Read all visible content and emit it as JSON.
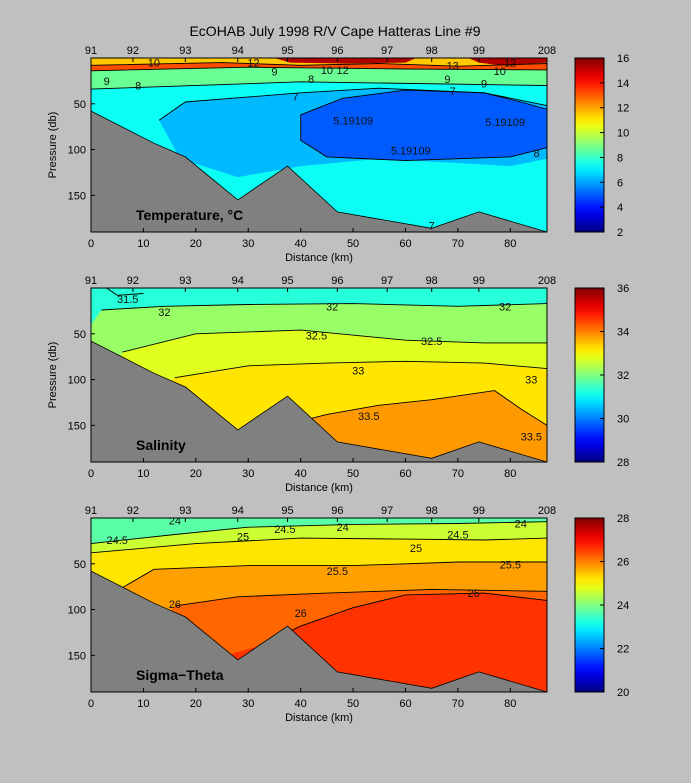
{
  "figure": {
    "title": "EcOHAB   July 1998   R/V Cape Hatteras   Line #9"
  },
  "chart_data": [
    {
      "type": "contour",
      "panel_name": "Temperature, °C",
      "xlabel": "Distance (km)",
      "ylabel": "Pressure (db)",
      "xlim": [
        0,
        87
      ],
      "ylim": [
        190,
        0
      ],
      "x_ticks": [
        0,
        10,
        20,
        30,
        40,
        50,
        60,
        70,
        80
      ],
      "y_ticks": [
        50,
        100,
        150
      ],
      "station_labels": [
        {
          "label": "91",
          "x": 0
        },
        {
          "label": "92",
          "x": 8
        },
        {
          "label": "93",
          "x": 18
        },
        {
          "label": "94",
          "x": 28
        },
        {
          "label": "95",
          "x": 37.5
        },
        {
          "label": "96",
          "x": 47
        },
        {
          "label": "97",
          "x": 56.5
        },
        {
          "label": "98",
          "x": 65
        },
        {
          "label": "99",
          "x": 74
        },
        {
          "label": "208",
          "x": 87
        }
      ],
      "colorbar": {
        "min": 2,
        "max": 16,
        "ticks": [
          "2",
          "4",
          "6",
          "8",
          "10",
          "12",
          "14",
          "16"
        ]
      },
      "contour_labels": [
        {
          "text": "10",
          "x": 12,
          "y": 5
        },
        {
          "text": "12",
          "x": 31,
          "y": 5
        },
        {
          "text": "9",
          "x": 35,
          "y": 15
        },
        {
          "text": "10",
          "x": 45,
          "y": 13
        },
        {
          "text": "12",
          "x": 48,
          "y": 13
        },
        {
          "text": "8",
          "x": 42,
          "y": 23
        },
        {
          "text": "13",
          "x": 69,
          "y": 8
        },
        {
          "text": "12",
          "x": 80,
          "y": 5
        },
        {
          "text": "10",
          "x": 78,
          "y": 14
        },
        {
          "text": "9",
          "x": 3,
          "y": 25
        },
        {
          "text": "8",
          "x": 9,
          "y": 30
        },
        {
          "text": "9",
          "x": 68,
          "y": 23
        },
        {
          "text": "9",
          "x": 75,
          "y": 28
        },
        {
          "text": "7",
          "x": 69,
          "y": 36
        },
        {
          "text": "7",
          "x": 39,
          "y": 42
        },
        {
          "text": "5.19109",
          "x": 50,
          "y": 68
        },
        {
          "text": "5.19109",
          "x": 61,
          "y": 101
        },
        {
          "text": "5.19109",
          "x": 79,
          "y": 70
        },
        {
          "text": "8",
          "x": 85,
          "y": 104
        },
        {
          "text": "7",
          "x": 65,
          "y": 183
        }
      ]
    },
    {
      "type": "contour",
      "panel_name": "Salinity",
      "xlabel": "Distance (km)",
      "ylabel": "Pressure (db)",
      "xlim": [
        0,
        87
      ],
      "ylim": [
        190,
        0
      ],
      "x_ticks": [
        0,
        10,
        20,
        30,
        40,
        50,
        60,
        70,
        80
      ],
      "y_ticks": [
        50,
        100,
        150
      ],
      "station_labels": [
        {
          "label": "91",
          "x": 0
        },
        {
          "label": "92",
          "x": 8
        },
        {
          "label": "93",
          "x": 18
        },
        {
          "label": "94",
          "x": 28
        },
        {
          "label": "95",
          "x": 37.5
        },
        {
          "label": "96",
          "x": 47
        },
        {
          "label": "97",
          "x": 56.5
        },
        {
          "label": "98",
          "x": 65
        },
        {
          "label": "99",
          "x": 74
        },
        {
          "label": "208",
          "x": 87
        }
      ],
      "colorbar": {
        "min": 28,
        "max": 36,
        "ticks": [
          "28",
          "30",
          "32",
          "34",
          "36"
        ]
      },
      "contour_labels": [
        {
          "text": "31.5",
          "x": 7,
          "y": 12
        },
        {
          "text": "32",
          "x": 14,
          "y": 26
        },
        {
          "text": "32",
          "x": 46,
          "y": 20
        },
        {
          "text": "32",
          "x": 79,
          "y": 20
        },
        {
          "text": "32.5",
          "x": 43,
          "y": 52
        },
        {
          "text": "32.5",
          "x": 65,
          "y": 58
        },
        {
          "text": "33",
          "x": 51,
          "y": 90
        },
        {
          "text": "33",
          "x": 84,
          "y": 100
        },
        {
          "text": "33.5",
          "x": 53,
          "y": 140
        },
        {
          "text": "33.5",
          "x": 84,
          "y": 162
        }
      ]
    },
    {
      "type": "contour",
      "panel_name": "Sigma−Theta",
      "xlabel": "Distance (km)",
      "ylabel": "",
      "xlim": [
        0,
        87
      ],
      "ylim": [
        190,
        0
      ],
      "x_ticks": [
        0,
        10,
        20,
        30,
        40,
        50,
        60,
        70,
        80
      ],
      "y_ticks": [
        50,
        100,
        150
      ],
      "station_labels": [
        {
          "label": "91",
          "x": 0
        },
        {
          "label": "92",
          "x": 8
        },
        {
          "label": "93",
          "x": 18
        },
        {
          "label": "94",
          "x": 28
        },
        {
          "label": "95",
          "x": 37.5
        },
        {
          "label": "96",
          "x": 47
        },
        {
          "label": "97",
          "x": 56.5
        },
        {
          "label": "98",
          "x": 65
        },
        {
          "label": "99",
          "x": 74
        },
        {
          "label": "208",
          "x": 87
        }
      ],
      "colorbar": {
        "min": 20,
        "max": 28,
        "ticks": [
          "20",
          "22",
          "24",
          "26",
          "28"
        ]
      },
      "contour_labels": [
        {
          "text": "24",
          "x": 16,
          "y": 3
        },
        {
          "text": "24.5",
          "x": 5,
          "y": 24
        },
        {
          "text": "25",
          "x": 29,
          "y": 20
        },
        {
          "text": "24.5",
          "x": 37,
          "y": 12
        },
        {
          "text": "24",
          "x": 48,
          "y": 10
        },
        {
          "text": "24",
          "x": 82,
          "y": 6
        },
        {
          "text": "24.5",
          "x": 70,
          "y": 18
        },
        {
          "text": "25",
          "x": 62,
          "y": 33
        },
        {
          "text": "25.5",
          "x": 47,
          "y": 58
        },
        {
          "text": "25.5",
          "x": 80,
          "y": 51
        },
        {
          "text": "26",
          "x": 16,
          "y": 94
        },
        {
          "text": "26",
          "x": 40,
          "y": 104
        },
        {
          "text": "26",
          "x": 73,
          "y": 82
        }
      ]
    }
  ]
}
